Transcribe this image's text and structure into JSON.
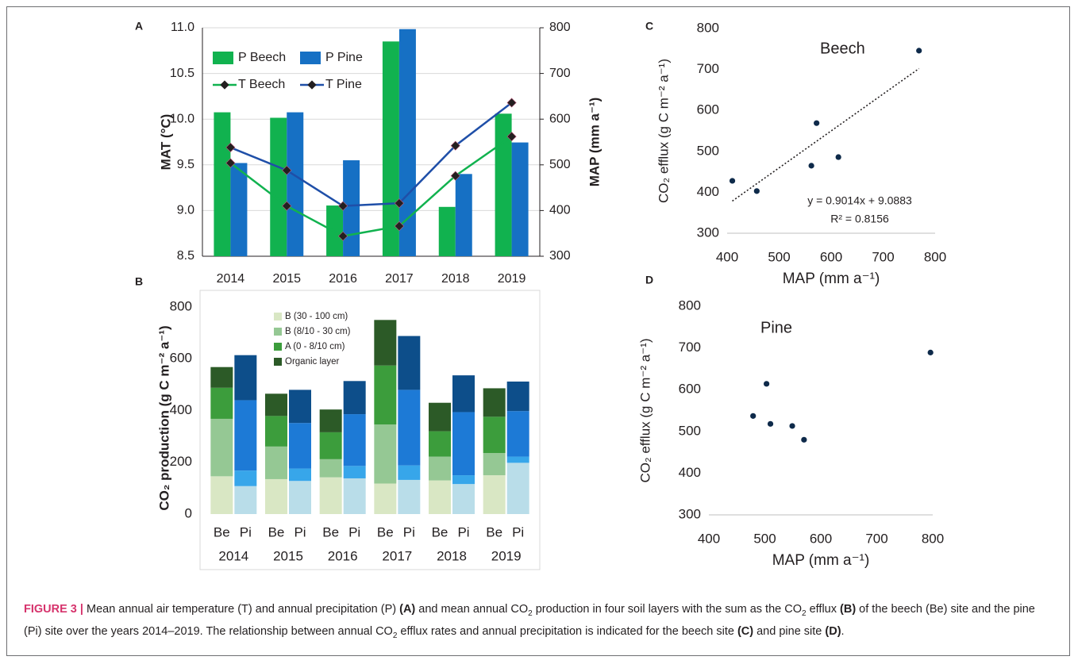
{
  "caption": {
    "label": "FIGURE 3 |",
    "text1": " Mean annual air temperature (T) and annual precipitation (P) ",
    "refA": "(A)",
    "text2": " and mean annual CO",
    "sub2": "2",
    "text3": " production in four soil layers with the sum as the CO",
    "sub3": "2",
    "text4": " efflux ",
    "refB": "(B)",
    "text5": " of the beech (Be) site and the pine (Pi) site over the years 2014–2019. The relationship between annual CO",
    "sub5": "2",
    "text6": " efflux rates and annual precipitation is indicated for the beech site ",
    "refC": "(C)",
    "text7": " and pine site ",
    "refD": "(D)",
    "text8": "."
  },
  "chart_data": [
    {
      "panel": "A",
      "type": "bar",
      "categories": [
        "2014",
        "2015",
        "2016",
        "2017",
        "2018",
        "2019"
      ],
      "ylabel_left": "MAT (°C)",
      "ylabel_right": "MAP (mm a⁻¹)",
      "ylim_left": [
        8.5,
        11.0
      ],
      "yticks_left": [
        "8.5",
        "9.0",
        "9.5",
        "10.0",
        "10.5",
        "11.0"
      ],
      "ylim_right": [
        300,
        800
      ],
      "yticks_right": [
        "300",
        "400",
        "500",
        "600",
        "700",
        "800"
      ],
      "bar_series": [
        {
          "name": "P Beech",
          "color": "#11b24f",
          "values": [
            615,
            603,
            411,
            770,
            408,
            612
          ]
        },
        {
          "name": "P Pine",
          "color": "#1670c4",
          "values": [
            504,
            615,
            510,
            797,
            480,
            549
          ]
        }
      ],
      "line_series": [
        {
          "name": "T Beech",
          "color": "#11b24f",
          "values": [
            9.52,
            9.05,
            8.72,
            8.83,
            9.38,
            9.81
          ]
        },
        {
          "name": "T Pine",
          "color": "#1f4fa8",
          "values": [
            9.69,
            9.44,
            9.05,
            9.08,
            9.71,
            10.18
          ]
        }
      ],
      "legend": "top-left"
    },
    {
      "panel": "B",
      "type": "bar",
      "stacked": true,
      "ylabel": "CO₂ production (g C m⁻² a⁻¹)",
      "ylim": [
        0,
        800
      ],
      "yticks": [
        "0",
        "200",
        "400",
        "600",
        "800"
      ],
      "years": [
        "2014",
        "2015",
        "2016",
        "2017",
        "2018",
        "2019"
      ],
      "sites": [
        "Be",
        "Pi"
      ],
      "layers": [
        "B (30 - 100 cm)",
        "B (8/10 - 30 cm)",
        "A (0 - 8/10 cm)",
        "Organic layer"
      ],
      "colors": {
        "Be": [
          "#d9e7c4",
          "#95c894",
          "#3c9d3c",
          "#2c5a27"
        ],
        "Pi": [
          "#b9dde9",
          "#37a6ea",
          "#1d7ad6",
          "#0d4e8a"
        ]
      },
      "values": {
        "Be": [
          [
            146,
            222,
            120,
            80
          ],
          [
            135,
            126,
            118,
            86
          ],
          [
            142,
            70,
            104,
            88
          ],
          [
            118,
            228,
            228,
            176
          ],
          [
            130,
            92,
            98,
            110
          ],
          [
            150,
            86,
            140,
            110
          ]
        ],
        "Pi": [
          [
            108,
            60,
            272,
            174
          ],
          [
            128,
            48,
            176,
            128
          ],
          [
            138,
            48,
            200,
            128
          ],
          [
            132,
            56,
            292,
            208
          ],
          [
            116,
            34,
            244,
            142
          ],
          [
            198,
            24,
            176,
            114
          ]
        ]
      },
      "legend": "top-left"
    },
    {
      "panel": "C",
      "type": "scatter",
      "title": "Beech",
      "xlabel": "MAP (mm a⁻¹)",
      "ylabel": "CO₂ efflux (g C m⁻² a⁻¹)",
      "xlim": [
        400,
        800
      ],
      "xticks": [
        "400",
        "500",
        "600",
        "700",
        "800"
      ],
      "ylim": [
        300,
        800
      ],
      "yticks": [
        "300",
        "400",
        "500",
        "600",
        "700",
        "800"
      ],
      "x": [
        410,
        457,
        562,
        572,
        614,
        769
      ],
      "y": [
        428,
        403,
        465,
        569,
        486,
        746
      ],
      "trendline": {
        "slope": 0.9014,
        "intercept": 9.0883,
        "x_range": [
          410,
          769
        ]
      },
      "equation": "y = 0.9014x + 9.0883",
      "r2": "R² = 0.8156"
    },
    {
      "panel": "D",
      "type": "scatter",
      "title": "Pine",
      "xlabel": "MAP (mm a⁻¹)",
      "ylabel": "CO₂ efflux (g C m⁻² a⁻¹)",
      "xlim": [
        400,
        800
      ],
      "xticks": [
        "400",
        "500",
        "600",
        "700",
        "800"
      ],
      "ylim": [
        300,
        800
      ],
      "yticks": [
        "300",
        "400",
        "500",
        "600",
        "700",
        "800"
      ],
      "x": [
        479,
        503,
        510,
        549,
        570,
        796
      ],
      "y": [
        537,
        614,
        518,
        513,
        480,
        689
      ]
    }
  ]
}
